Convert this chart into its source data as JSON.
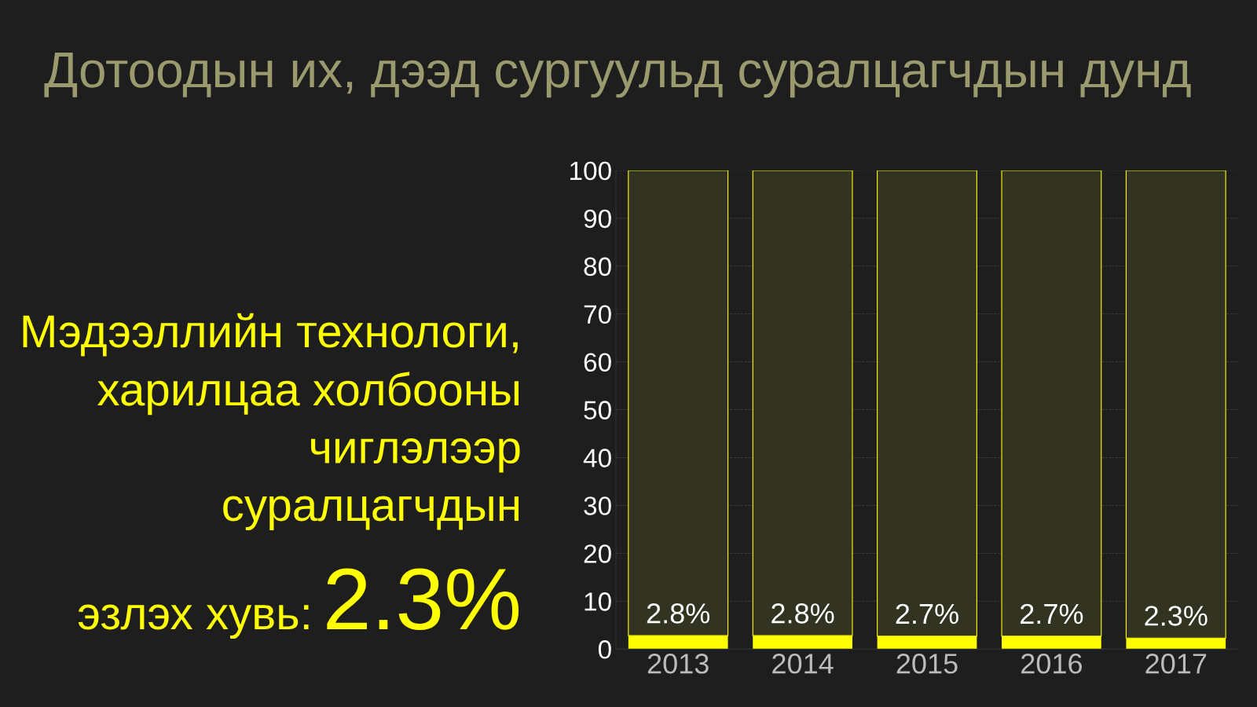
{
  "chart_data": {
    "type": "bar",
    "title": "Дотоодын их, дээд сургуульд суралцагчдын дунд",
    "annotations": [
      "Мэдээллийн технологи,\nхарилцаа холбооны\nчиглэлээр\nсуралцагчдын",
      "эзлэх хувь:",
      "2.3%"
    ],
    "categories": [
      "2013",
      "2014",
      "2015",
      "2016",
      "2017"
    ],
    "stacked": true,
    "series": [
      {
        "color": "#ffff00",
        "values": [
          2.8,
          2.8,
          2.7,
          2.7,
          2.3
        ],
        "value_labels": [
          "2.8%",
          "2.8%",
          "2.7%",
          "2.7%",
          "2.3%"
        ]
      },
      {
        "color": "#333322",
        "values": [
          97.2,
          97.2,
          97.3,
          97.3,
          97.7
        ]
      }
    ],
    "ylim": [
      0,
      100
    ],
    "yticks": [
      0,
      10,
      20,
      30,
      40,
      50,
      60,
      70,
      80,
      90,
      100
    ],
    "grid": "y"
  }
}
